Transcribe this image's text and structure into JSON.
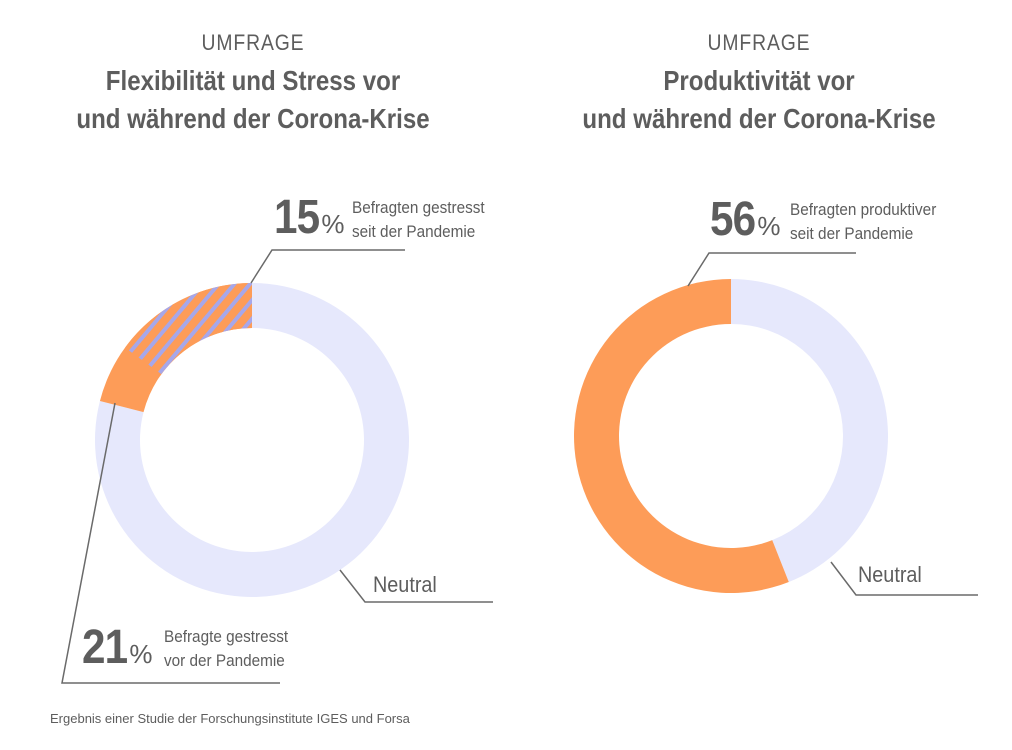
{
  "colors": {
    "orange": "#fd9c58",
    "neutral": "#e6e8fc",
    "stripe": "#a6a7ea",
    "text": "#5d5d5d",
    "line": "#6a6a6a"
  },
  "footer": {
    "source": "Ergebnis einer Studie der Forschungsinstitute IGES und Forsa"
  },
  "chart_data": [
    {
      "type": "pie",
      "donut": true,
      "kicker": "UMFRAGE",
      "title_line1": "Flexibilität und Stress vor",
      "title_line2": "und während der Corona-Krise",
      "slices": [
        {
          "label_line1": "Befragten gestresst",
          "label_line2": "seit der Pandemie",
          "value": 15,
          "value_text": "15",
          "style": "striped"
        },
        {
          "label_line1": "Befragte gestresst",
          "label_line2": "vor der Pandemie",
          "value": 21,
          "value_text": "21",
          "style": "solid"
        },
        {
          "label_line1": "Neutral",
          "value": 79,
          "style": "neutral"
        }
      ],
      "note": "The 15% striped segment lies inside the 21% orange segment"
    },
    {
      "type": "pie",
      "donut": true,
      "kicker": "UMFRAGE",
      "title_line1": "Produktivität vor",
      "title_line2": "und während der Corona-Krise",
      "slices": [
        {
          "label_line1": "Befragten produktiver",
          "label_line2": "seit der Pandemie",
          "value": 56,
          "value_text": "56",
          "style": "solid"
        },
        {
          "label_line1": "Neutral",
          "value": 44,
          "style": "neutral"
        }
      ]
    }
  ]
}
